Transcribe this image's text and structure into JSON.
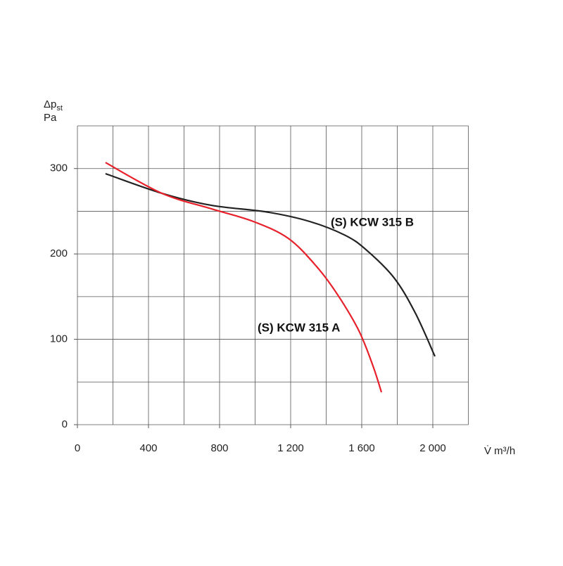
{
  "chart_data": {
    "type": "line",
    "y_label_main": "Δp",
    "y_label_sub": "st",
    "y_unit": "Pa",
    "x_label": "V̇ m³/h",
    "xlim": [
      0,
      2200
    ],
    "ylim": [
      0,
      350
    ],
    "xticks": [
      0,
      400,
      800,
      {
        "value": 1200,
        "label": "1 200"
      },
      {
        "value": 1600,
        "label": "1 600"
      },
      {
        "value": 2000,
        "label": "2 000"
      }
    ],
    "yticks": [
      0,
      100,
      200,
      300
    ],
    "xgrid": [
      0,
      200,
      400,
      600,
      800,
      1000,
      1200,
      1400,
      1600,
      1800,
      2000,
      2200
    ],
    "ygrid": [
      0,
      50,
      100,
      150,
      200,
      250,
      300,
      350
    ],
    "grid": true,
    "series": [
      {
        "name": "(S) KCW 315 B",
        "color": "#222222",
        "x": [
          158,
          475,
          752,
          1069,
          1307,
          1505,
          1624,
          1782,
          1901,
          2012
        ],
        "values": [
          294,
          271,
          257,
          249,
          238,
          222,
          205,
          172,
          131,
          80
        ]
      },
      {
        "name": "(S) KCW 315 A",
        "color": "#e8202a",
        "x": [
          158,
          475,
          752,
          990,
          1188,
          1347,
          1465,
          1584,
          1663,
          1711
        ],
        "values": [
          307,
          271,
          253,
          238,
          218,
          185,
          152,
          110,
          69,
          38
        ]
      }
    ]
  }
}
